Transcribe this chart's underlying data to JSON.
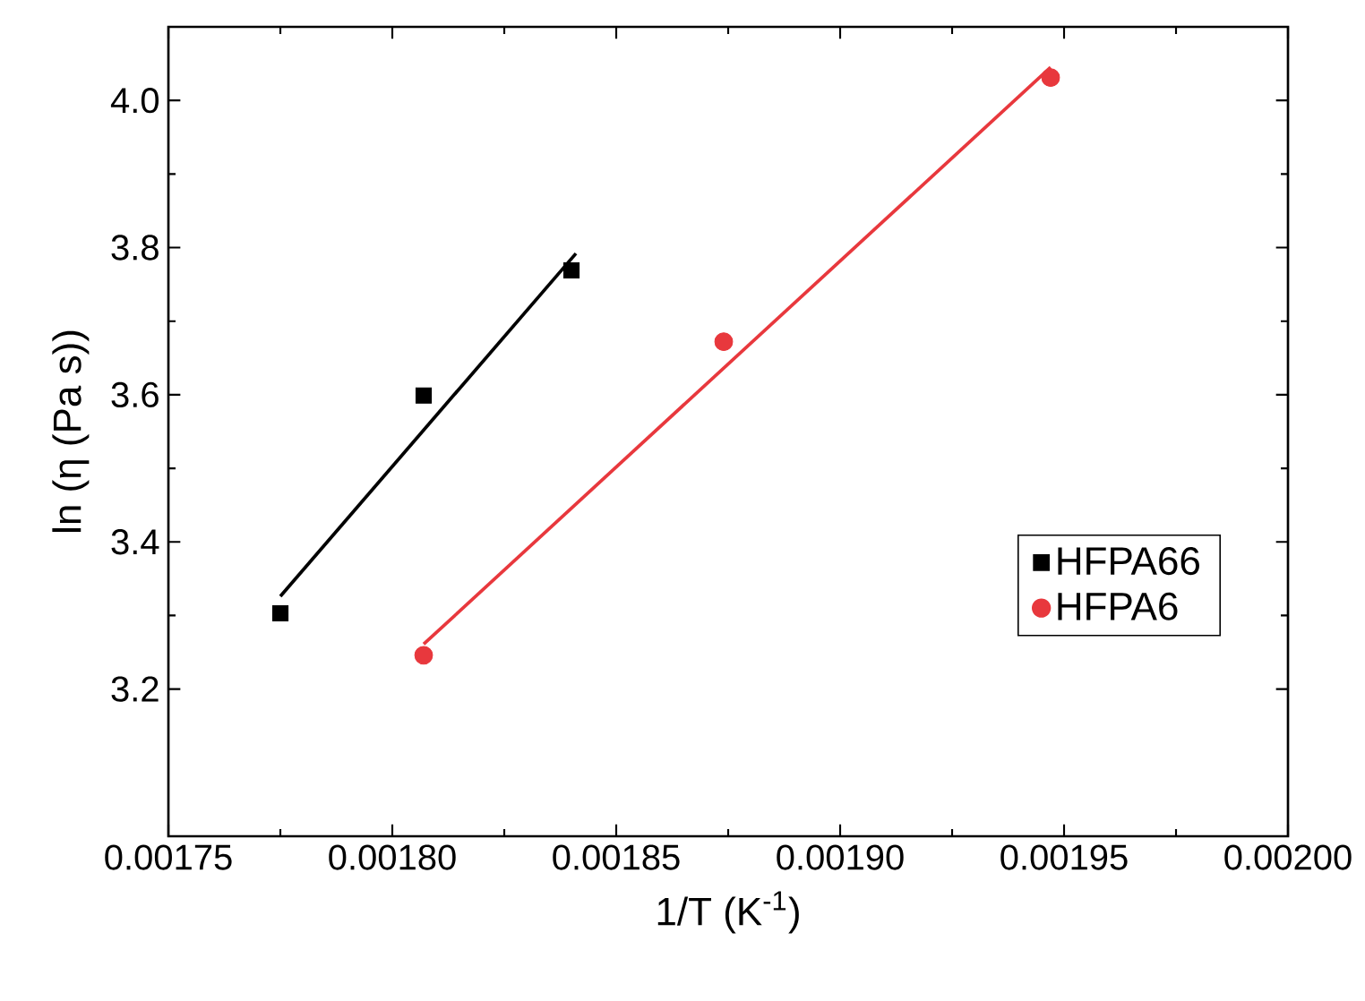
{
  "chart_data": {
    "type": "scatter",
    "xlabel": "1/T (K$^{-1}$)",
    "ylabel": "ln (η (Pa s))",
    "xlim": [
      0.00175,
      0.002
    ],
    "ylim": [
      3.0,
      4.1
    ],
    "xticks": [
      {
        "value": 0.00175,
        "label": "0.00175"
      },
      {
        "value": 0.0018,
        "label": "0.00180"
      },
      {
        "value": 0.00185,
        "label": "0.00185"
      },
      {
        "value": 0.0019,
        "label": "0.00190"
      },
      {
        "value": 0.00195,
        "label": "0.00195"
      },
      {
        "value": 0.002,
        "label": "0.00200"
      }
    ],
    "yticks": [
      {
        "value": 3.2,
        "label": "3.2"
      },
      {
        "value": 3.4,
        "label": "3.4"
      },
      {
        "value": 3.6,
        "label": "3.6"
      },
      {
        "value": 3.8,
        "label": "3.8"
      },
      {
        "value": 4.0,
        "label": "4.0"
      }
    ],
    "legend": "right",
    "series": [
      {
        "name": "HFPA66",
        "marker": "square",
        "color": "#000000",
        "x": [
          0.001775,
          0.001807,
          0.00184
        ],
        "values": [
          3.303,
          3.599,
          3.769
        ]
      },
      {
        "name": "HFPA6",
        "marker": "circle",
        "color": "#e8383d",
        "x": [
          0.001807,
          0.001874,
          0.001947
        ],
        "values": [
          3.246,
          3.672,
          4.031
        ]
      },
      {
        "type": "line",
        "color": "#000000",
        "x": [
          0.001775,
          0.001841
        ],
        "values": [
          3.326,
          3.792
        ]
      },
      {
        "type": "line",
        "color": "#e8383d",
        "x": [
          0.001807,
          0.001947
        ],
        "values": [
          3.261,
          4.045
        ]
      }
    ]
  }
}
